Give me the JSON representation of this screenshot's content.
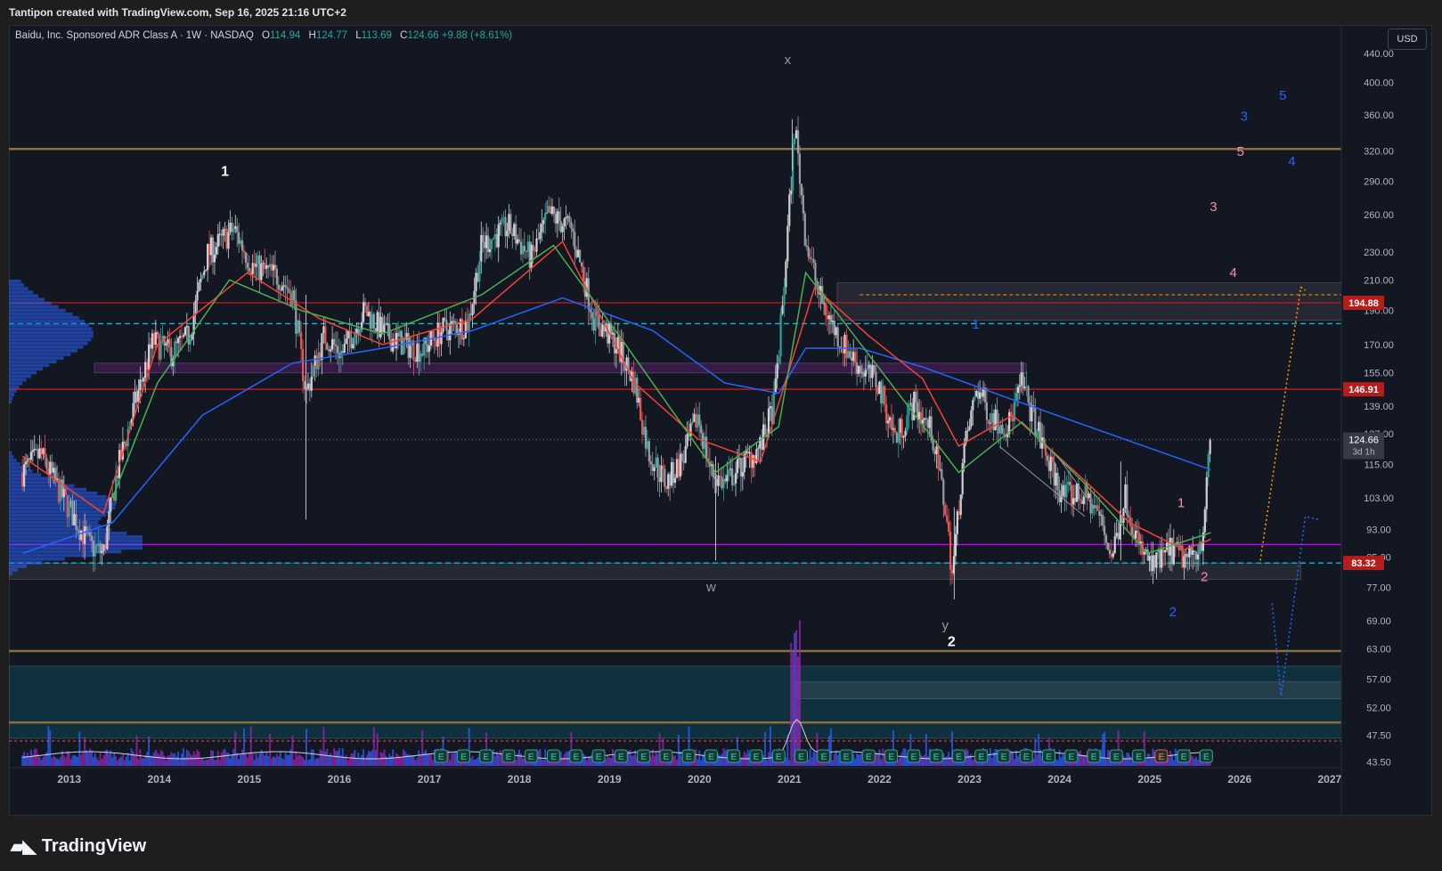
{
  "header": {
    "caption": "Tantipon created with TradingView.com, Sep 16, 2025 21:16 UTC+2"
  },
  "legend": {
    "symbol": "Baidu, Inc. Sponsored ADR Class A · 1W · NASDAQ",
    "o_label": "O",
    "o_value": "114.94",
    "h_label": "H",
    "h_value": "124.77",
    "l_label": "L",
    "l_value": "113.69",
    "c_label": "C",
    "c_value": "124.66",
    "change": "+9.88 (+8.61%)"
  },
  "currency_button": "USD",
  "footer": {
    "brand": "TradingView"
  },
  "colors": {
    "background": "#131722",
    "up": "#26a69a",
    "down": "#ef5350",
    "ema_short": "#4caf50",
    "ema_mid": "#f44336",
    "sma_long": "#2962ff",
    "red_level": "#b71c1c",
    "cyan_level": "#00bcd4",
    "magenta_level": "#c800ff",
    "gold_level": "#8d6e3a",
    "price_label_red": "#b71c1c",
    "price_label_gray": "#363a45"
  },
  "chart_data": {
    "type": "candlestick",
    "title": "Baidu, Inc. Sponsored ADR Class A · 1W · NASDAQ",
    "x_ticks": [
      "2013",
      "2014",
      "2015",
      "2016",
      "2017",
      "2018",
      "2019",
      "2020",
      "2021",
      "2022",
      "2023",
      "2024",
      "2025",
      "2026",
      "2027"
    ],
    "x_range": [
      2012.35,
      2027.15
    ],
    "y_scale": "log",
    "y_range": [
      41,
      480
    ],
    "y_ticks": [
      "440.00",
      "400.00",
      "360.00",
      "320.00",
      "290.00",
      "260.00",
      "230.00",
      "210.00",
      "190.00",
      "170.00",
      "155.00",
      "139.00",
      "127.00",
      "115.00",
      "103.00",
      "93.00",
      "85.00",
      "77.00",
      "69.00",
      "63.00",
      "57.00",
      "52.00",
      "47.50",
      "43.50"
    ],
    "last_price": {
      "value": "124.66",
      "countdown": "3d 1h"
    },
    "price_labels": [
      {
        "text": "194.88",
        "value": 194.88,
        "color": "#b71c1c"
      },
      {
        "text": "146.91",
        "value": 146.91,
        "color": "#b71c1c"
      },
      {
        "text": "83.32",
        "value": 83.32,
        "color": "#b71c1c"
      }
    ],
    "horizontal_levels": [
      {
        "value": 322,
        "color": "#8d6e3a",
        "style": "solid"
      },
      {
        "value": 194.88,
        "color": "#b71c1c",
        "style": "solid"
      },
      {
        "value": 182,
        "color": "#00bcd4",
        "style": "dashed"
      },
      {
        "value": 146.91,
        "color": "#b71c1c",
        "style": "solid"
      },
      {
        "value": 88.5,
        "color": "#c800ff",
        "style": "solid"
      },
      {
        "value": 83.32,
        "color": "#00bcd4",
        "style": "dashed"
      },
      {
        "value": 62.5,
        "color": "#8d6e3a",
        "style": "solid"
      },
      {
        "value": 49.5,
        "color": "#8d6e3a",
        "style": "solid"
      }
    ],
    "zones": [
      {
        "x0": 2012.35,
        "x1": 2026.7,
        "y0": 79,
        "y1": 83.3,
        "color": "rgba(120,123,134,0.18)"
      },
      {
        "x0": 2013.3,
        "x1": 2023.65,
        "y0": 155,
        "y1": 160,
        "color": "rgba(156,39,176,0.25)"
      },
      {
        "x0": 2021.55,
        "x1": 2027.15,
        "y0": 184,
        "y1": 208,
        "color": "rgba(120,123,134,0.18)"
      },
      {
        "x0": 2012.35,
        "x1": 2027.15,
        "y0": 47,
        "y1": 59.5,
        "color": "rgba(0,150,170,0.20)"
      },
      {
        "x0": 2021.1,
        "x1": 2027.15,
        "y0": 53.5,
        "y1": 56.5,
        "color": "rgba(120,123,134,0.20)"
      }
    ],
    "price_path": [
      [
        2012.5,
        112
      ],
      [
        2012.7,
        119
      ],
      [
        2012.9,
        106
      ],
      [
        2013.05,
        98
      ],
      [
        2013.25,
        88
      ],
      [
        2013.4,
        86
      ],
      [
        2013.55,
        112
      ],
      [
        2013.75,
        140
      ],
      [
        2013.95,
        172
      ],
      [
        2014.15,
        165
      ],
      [
        2014.35,
        175
      ],
      [
        2014.55,
        228
      ],
      [
        2014.85,
        248
      ],
      [
        2015.05,
        220
      ],
      [
        2015.35,
        212
      ],
      [
        2015.5,
        200
      ],
      [
        2015.65,
        145
      ],
      [
        2015.85,
        175
      ],
      [
        2016.05,
        165
      ],
      [
        2016.3,
        190
      ],
      [
        2016.55,
        175
      ],
      [
        2016.75,
        170
      ],
      [
        2016.95,
        167
      ],
      [
        2017.15,
        178
      ],
      [
        2017.45,
        182
      ],
      [
        2017.6,
        235
      ],
      [
        2017.9,
        250
      ],
      [
        2018.15,
        225
      ],
      [
        2018.35,
        260
      ],
      [
        2018.6,
        248
      ],
      [
        2018.85,
        185
      ],
      [
        2019.1,
        170
      ],
      [
        2019.3,
        150
      ],
      [
        2019.45,
        120
      ],
      [
        2019.65,
        108
      ],
      [
        2019.85,
        118
      ],
      [
        2020.0,
        135
      ],
      [
        2020.15,
        112
      ],
      [
        2020.3,
        108
      ],
      [
        2020.5,
        115
      ],
      [
        2020.7,
        122
      ],
      [
        2020.85,
        140
      ],
      [
        2020.95,
        198
      ],
      [
        2021.08,
        350
      ],
      [
        2021.2,
        240
      ],
      [
        2021.35,
        200
      ],
      [
        2021.55,
        175
      ],
      [
        2021.8,
        158
      ],
      [
        2022.0,
        150
      ],
      [
        2022.2,
        125
      ],
      [
        2022.4,
        140
      ],
      [
        2022.6,
        128
      ],
      [
        2022.75,
        100
      ],
      [
        2022.83,
        80
      ],
      [
        2022.95,
        118
      ],
      [
        2023.1,
        148
      ],
      [
        2023.25,
        135
      ],
      [
        2023.45,
        130
      ],
      [
        2023.6,
        150
      ],
      [
        2023.85,
        120
      ],
      [
        2024.05,
        104
      ],
      [
        2024.3,
        104
      ],
      [
        2024.45,
        98
      ],
      [
        2024.6,
        85
      ],
      [
        2024.75,
        104
      ],
      [
        2024.9,
        88
      ],
      [
        2025.05,
        82
      ],
      [
        2025.25,
        87
      ],
      [
        2025.45,
        84
      ],
      [
        2025.6,
        90
      ],
      [
        2025.7,
        124.66
      ]
    ],
    "indicators": [
      {
        "name": "",
        "color": "#2962ff",
        "points": [
          [
            2012.5,
            86
          ],
          [
            2013.5,
            95
          ],
          [
            2014.5,
            135
          ],
          [
            2015.5,
            160
          ],
          [
            2016.5,
            168
          ],
          [
            2017.5,
            178
          ],
          [
            2018.5,
            198
          ],
          [
            2019.5,
            178
          ],
          [
            2020.3,
            150
          ],
          [
            2020.9,
            145
          ],
          [
            2021.2,
            168
          ],
          [
            2021.8,
            168
          ],
          [
            2022.5,
            158
          ],
          [
            2023.5,
            142
          ],
          [
            2024.5,
            128
          ],
          [
            2025.7,
            113
          ]
        ]
      },
      {
        "name": "",
        "color": "#f44336",
        "points": [
          [
            2012.5,
            118
          ],
          [
            2013.4,
            98
          ],
          [
            2014.0,
            170
          ],
          [
            2015.0,
            215
          ],
          [
            2015.8,
            185
          ],
          [
            2016.5,
            170
          ],
          [
            2017.5,
            185
          ],
          [
            2018.5,
            238
          ],
          [
            2019.3,
            150
          ],
          [
            2020.0,
            125
          ],
          [
            2020.7,
            116
          ],
          [
            2021.3,
            205
          ],
          [
            2021.9,
            175
          ],
          [
            2022.5,
            152
          ],
          [
            2022.9,
            122
          ],
          [
            2023.5,
            135
          ],
          [
            2024.2,
            112
          ],
          [
            2024.8,
            95
          ],
          [
            2025.4,
            87
          ],
          [
            2025.7,
            90
          ]
        ]
      },
      {
        "name": "",
        "color": "#4caf50",
        "points": [
          [
            2013.5,
            103
          ],
          [
            2014.0,
            150
          ],
          [
            2014.8,
            210
          ],
          [
            2015.6,
            190
          ],
          [
            2016.5,
            176
          ],
          [
            2017.6,
            200
          ],
          [
            2018.4,
            235
          ],
          [
            2019.2,
            170
          ],
          [
            2020.2,
            112
          ],
          [
            2020.9,
            130
          ],
          [
            2021.2,
            215
          ],
          [
            2021.5,
            192
          ],
          [
            2022.9,
            112
          ],
          [
            2023.6,
            132
          ],
          [
            2024.3,
            108
          ],
          [
            2025.0,
            86
          ],
          [
            2025.7,
            92
          ]
        ]
      }
    ],
    "annotations": [
      {
        "text": "1",
        "x": 2014.75,
        "y": 295,
        "color": "#ffffff",
        "bold": true
      },
      {
        "text": "x",
        "x": 2021.0,
        "y": 425,
        "color": "#9598a1"
      },
      {
        "text": "w",
        "x": 2020.15,
        "y": 76,
        "color": "#9598a1"
      },
      {
        "text": "y",
        "x": 2022.75,
        "y": 67,
        "color": "#9598a1"
      },
      {
        "text": "2",
        "x": 2022.82,
        "y": 63.5,
        "color": "#ffffff",
        "bold": true
      },
      {
        "text": "1",
        "x": 2025.37,
        "y": 100,
        "color": "#f48fb1"
      },
      {
        "text": "2",
        "x": 2025.63,
        "y": 78.5,
        "color": "#f48fb1"
      },
      {
        "text": "2",
        "x": 2025.28,
        "y": 70,
        "color": "#2962ff"
      },
      {
        "text": "1",
        "x": 2023.09,
        "y": 179,
        "color": "#2962ff"
      },
      {
        "text": "3",
        "x": 2025.73,
        "y": 263,
        "color": "#f48fb1"
      },
      {
        "text": "4",
        "x": 2025.95,
        "y": 212,
        "color": "#f48fb1"
      },
      {
        "text": "5",
        "x": 2026.03,
        "y": 315,
        "color": "#f48fb1"
      },
      {
        "text": "3",
        "x": 2026.07,
        "y": 353,
        "color": "#2962ff"
      },
      {
        "text": "4",
        "x": 2026.6,
        "y": 305,
        "color": "#2962ff"
      },
      {
        "text": "5",
        "x": 2026.5,
        "y": 378,
        "color": "#2962ff"
      }
    ],
    "projections": [
      {
        "color": "#ff9800",
        "points": [
          [
            2026.25,
            84
          ],
          [
            2026.7,
            205
          ],
          [
            2026.75,
            203
          ]
        ]
      },
      {
        "color": "#2962ff",
        "points": [
          [
            2026.38,
            73
          ],
          [
            2026.48,
            54
          ],
          [
            2026.75,
            97
          ],
          [
            2026.9,
            96
          ]
        ]
      }
    ]
  }
}
